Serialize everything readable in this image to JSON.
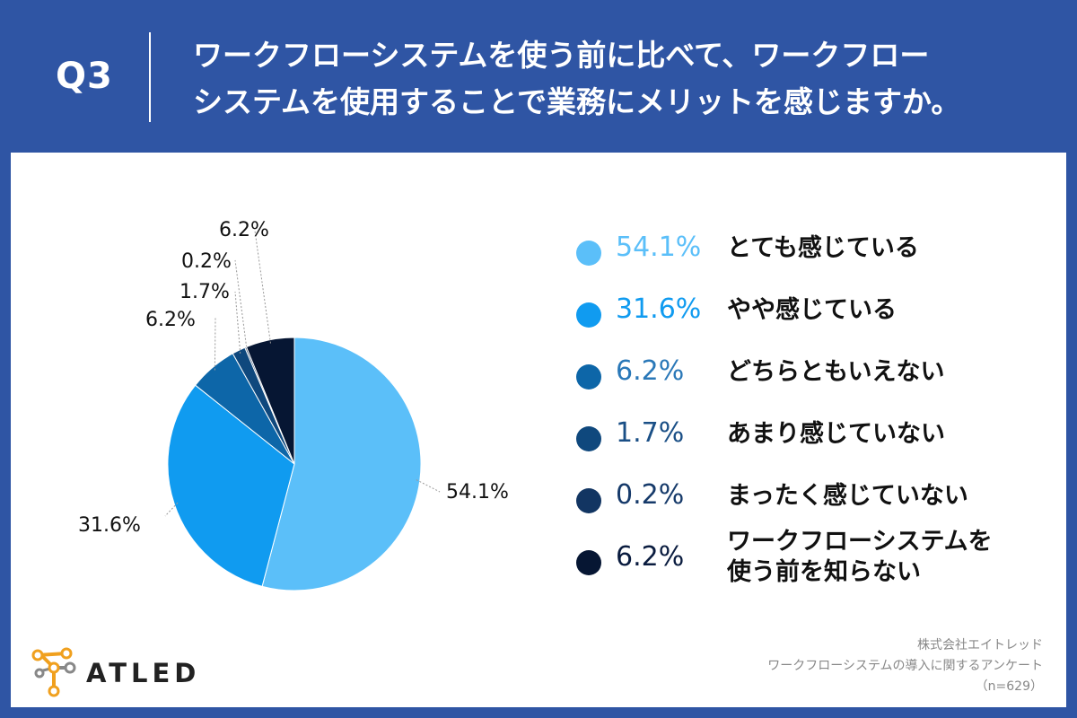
{
  "header": {
    "q_label": "Q3",
    "question_line1": "ワークフローシステムを使う前に比べて、ワークフロー",
    "question_line2": "システムを使用することで業務にメリットを感じますか。"
  },
  "chart_data": {
    "type": "pie",
    "title": "",
    "slices": [
      {
        "label": "とても感じている",
        "value": 54.1,
        "display": "54.1%",
        "color": "#5bbff9"
      },
      {
        "label": "やや感じている",
        "value": 31.6,
        "display": "31.6%",
        "color": "#109bf0"
      },
      {
        "label": "どちらともいえない",
        "value": 6.2,
        "display": "6.2%",
        "color": "#0d66a8"
      },
      {
        "label": "あまり感じていない",
        "value": 1.7,
        "display": "1.7%",
        "color": "#0f487d"
      },
      {
        "label": "まったく感じていない",
        "value": 0.2,
        "display": "0.2%",
        "color": "#123562"
      },
      {
        "label": "ワークフローシステムを使う前を知らない",
        "label_lines": [
          "ワークフローシステムを",
          "使う前を知らない"
        ],
        "value": 6.2,
        "display": "6.2%",
        "color": "#061633"
      }
    ],
    "legend_position": "right",
    "legend_pct_colors": [
      "#5bbff9",
      "#109bf0",
      "#2a78b8",
      "#1a4f86",
      "#163a6a",
      "#0a1c3f"
    ]
  },
  "footer": {
    "logo_text": "ATLED",
    "source_company": "株式会社エイトレッド",
    "source_survey": "ワークフローシステムの導入に関するアンケート",
    "source_n": "（n=629）"
  },
  "colors": {
    "header_bg": "#2f55a4",
    "panel_bg": "#ffffff",
    "logo_orange": "#f0a01e"
  }
}
